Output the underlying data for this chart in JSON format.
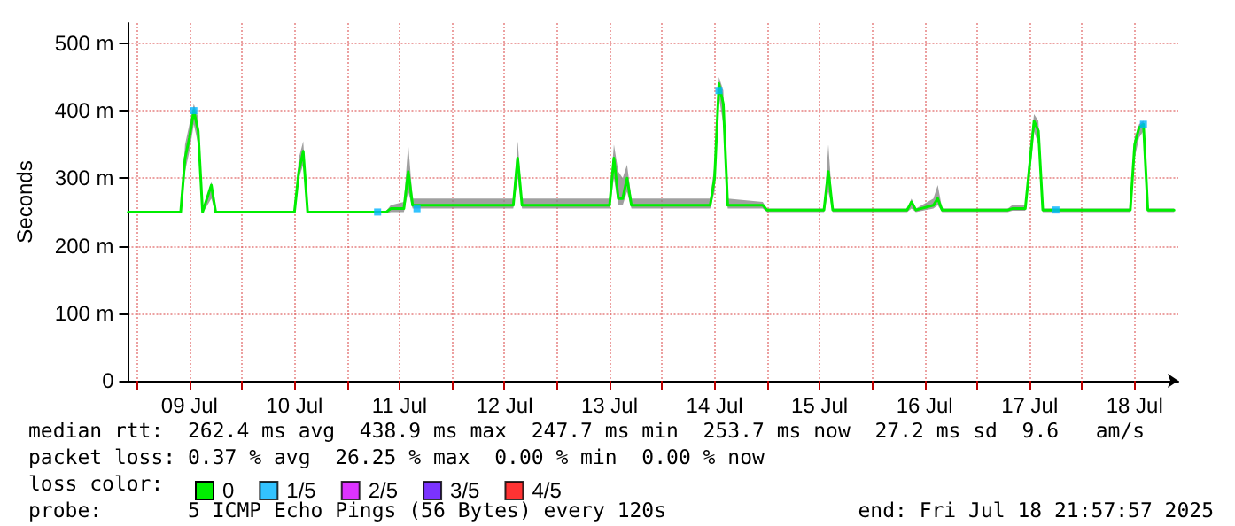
{
  "chart_data": {
    "type": "line",
    "ylabel": "Seconds",
    "xlim": [
      "2025-07-08T21:58",
      "2025-07-18T21:58"
    ],
    "ylim": [
      0,
      530
    ],
    "yticks": [
      0,
      {
        "value": 100,
        "label": "100 m"
      },
      {
        "value": 200,
        "label": "200 m"
      },
      {
        "value": 300,
        "label": "300 m"
      },
      {
        "value": 400,
        "label": "400 m"
      },
      {
        "value": 500,
        "label": "500 m"
      }
    ],
    "xticks": [
      {
        "value": "2025-07-09T00:00",
        "label": null
      },
      {
        "value": "2025-07-09T12:00",
        "label": "09 Jul"
      },
      {
        "value": "2025-07-10T00:00",
        "label": null
      },
      {
        "value": "2025-07-10T12:00",
        "label": "10 Jul"
      },
      {
        "value": "2025-07-11T00:00",
        "label": null
      },
      {
        "value": "2025-07-11T12:00",
        "label": "11 Jul"
      },
      {
        "value": "2025-07-12T00:00",
        "label": null
      },
      {
        "value": "2025-07-12T12:00",
        "label": "12 Jul"
      },
      {
        "value": "2025-07-13T00:00",
        "label": null
      },
      {
        "value": "2025-07-13T12:00",
        "label": "13 Jul"
      },
      {
        "value": "2025-07-14T00:00",
        "label": null
      },
      {
        "value": "2025-07-14T12:00",
        "label": "14 Jul"
      },
      {
        "value": "2025-07-15T00:00",
        "label": null
      },
      {
        "value": "2025-07-15T12:00",
        "label": "15 Jul"
      },
      {
        "value": "2025-07-16T00:00",
        "label": null
      },
      {
        "value": "2025-07-16T12:00",
        "label": "16 Jul"
      },
      {
        "value": "2025-07-17T00:00",
        "label": null
      },
      {
        "value": "2025-07-17T12:00",
        "label": "17 Jul"
      },
      {
        "value": "2025-07-18T00:00",
        "label": null
      },
      {
        "value": "2025-07-18T12:00",
        "label": "18 Jul"
      }
    ],
    "grid": true,
    "legend": "bottom left",
    "line_style": "solid",
    "series": [
      {
        "name": "0",
        "marker": "none",
        "color": "#00ee00",
        "x": [
          "2025-07-08T22:00",
          "2025-07-09T10:00",
          "2025-07-09T11:00",
          "2025-07-09T12:00",
          "2025-07-09T13:00",
          "2025-07-09T14:00",
          "2025-07-09T15:00",
          "2025-07-09T17:00",
          "2025-07-09T18:00",
          "2025-07-10T12:00",
          "2025-07-10T13:00",
          "2025-07-10T14:00",
          "2025-07-10T15:00",
          "2025-07-11T09:00",
          "2025-07-11T10:00",
          "2025-07-11T13:00",
          "2025-07-11T14:00",
          "2025-07-11T15:00",
          "2025-07-12T14:00",
          "2025-07-12T15:00",
          "2025-07-12T16:00",
          "2025-07-13T12:00",
          "2025-07-13T13:00",
          "2025-07-13T14:00",
          "2025-07-13T15:00",
          "2025-07-13T16:00",
          "2025-07-13T17:00",
          "2025-07-14T11:00",
          "2025-07-14T12:00",
          "2025-07-14T13:00",
          "2025-07-14T14:00",
          "2025-07-14T15:00",
          "2025-07-14T23:00",
          "2025-07-15T00:00",
          "2025-07-15T13:00",
          "2025-07-15T14:00",
          "2025-07-15T15:00",
          "2025-07-16T08:00",
          "2025-07-16T09:00",
          "2025-07-16T10:00",
          "2025-07-16T14:00",
          "2025-07-16T15:00",
          "2025-07-16T16:00",
          "2025-07-17T07:00",
          "2025-07-17T08:00",
          "2025-07-17T11:00",
          "2025-07-17T12:00",
          "2025-07-17T13:00",
          "2025-07-17T14:00",
          "2025-07-17T15:00",
          "2025-07-18T11:00",
          "2025-07-18T12:00",
          "2025-07-18T13:00",
          "2025-07-18T14:00",
          "2025-07-18T15:00",
          "2025-07-18T21:00"
        ],
        "values": [
          250,
          250,
          330,
          360,
          400,
          370,
          250,
          290,
          250,
          250,
          310,
          340,
          250,
          250,
          255,
          255,
          310,
          260,
          260,
          330,
          260,
          260,
          330,
          270,
          270,
          300,
          260,
          260,
          300,
          440,
          410,
          260,
          260,
          253,
          253,
          310,
          253,
          253,
          265,
          253,
          260,
          270,
          253,
          253,
          255,
          255,
          320,
          385,
          370,
          253,
          253,
          350,
          375,
          380,
          253,
          253
        ],
        "lower": [
          248,
          248,
          310,
          340,
          380,
          350,
          248,
          270,
          248,
          248,
          300,
          320,
          248,
          248,
          250,
          250,
          280,
          255,
          255,
          300,
          255,
          255,
          300,
          260,
          260,
          280,
          255,
          255,
          280,
          420,
          380,
          255,
          255,
          250,
          250,
          280,
          250,
          250,
          255,
          250,
          255,
          260,
          250,
          250,
          252,
          252,
          300,
          370,
          350,
          250,
          250,
          330,
          360,
          370,
          250,
          250
        ],
        "upper": [
          252,
          252,
          350,
          380,
          410,
          390,
          252,
          295,
          252,
          252,
          330,
          355,
          252,
          252,
          260,
          265,
          350,
          270,
          270,
          355,
          270,
          270,
          350,
          310,
          300,
          320,
          270,
          270,
          320,
          450,
          430,
          270,
          265,
          255,
          255,
          350,
          255,
          255,
          270,
          255,
          270,
          290,
          255,
          255,
          260,
          260,
          340,
          395,
          385,
          255,
          255,
          360,
          380,
          385,
          255,
          255
        ]
      },
      {
        "type": "scatter",
        "name": "1/5",
        "marker": "square",
        "color": "#00b4ff",
        "x": [
          "2025-07-09T13:00",
          "2025-07-11T07:00",
          "2025-07-11T16:00",
          "2025-07-14T13:00",
          "2025-07-17T18:00",
          "2025-07-18T14:00"
        ],
        "values": [
          400,
          250,
          255,
          430,
          253,
          380
        ]
      },
      {
        "type": "scatter",
        "name": "2/5",
        "marker": "square",
        "color": "#d400ff"
      },
      {
        "type": "scatter",
        "name": "3/5",
        "marker": "square",
        "color": "#5a00ff"
      },
      {
        "type": "scatter",
        "name": "4/5",
        "marker": "square",
        "color": "#ff0000"
      }
    ],
    "annotations": [
      "median rtt:  262.4 ms avg  438.9 ms max  247.7 ms min  253.7 ms now  27.2 ms sd  9.6   am/s",
      "packet loss: 0.37 % avg  26.25 % max  0.00 % min  0.00 % now",
      "loss color:",
      "probe:       5 ICMP Echo Pings (56 Bytes) every 120s",
      "end: Fri Jul 18 21:57:57 2025"
    ]
  }
}
